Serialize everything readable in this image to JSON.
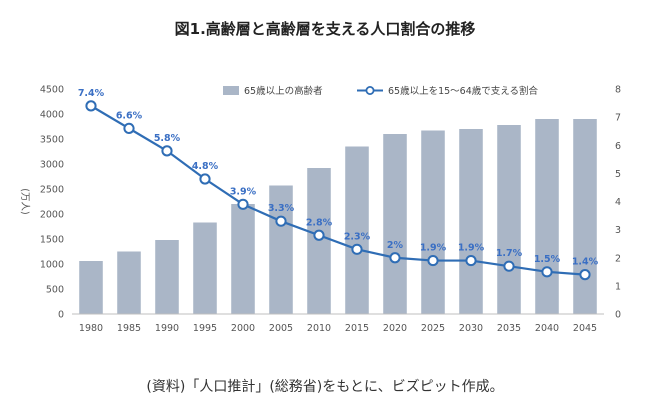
{
  "title": "図1.高齢層と高齢層を支える人口割合の推移",
  "source_note": "(資料)「人口推計」(総務省)をもとに、ビズピット作成。",
  "colors": {
    "bar": "#aab6c7",
    "line": "#2f6db5",
    "label": "#3a6fc4"
  },
  "chart_data": {
    "type": "bar",
    "categories": [
      "1980",
      "1985",
      "1990",
      "1995",
      "2000",
      "2005",
      "2010",
      "2015",
      "2020",
      "2025",
      "2030",
      "2035",
      "2040",
      "2045"
    ],
    "series": [
      {
        "name": "65歳以上の高齢者",
        "type": "bar",
        "axis": "left",
        "values": [
          1060,
          1250,
          1480,
          1830,
          2200,
          2570,
          2920,
          3350,
          3600,
          3670,
          3700,
          3780,
          3900,
          3900
        ]
      },
      {
        "name": "65歳以上を15〜64歳で支える割合",
        "type": "line",
        "axis": "right",
        "values": [
          7.4,
          6.6,
          5.8,
          4.8,
          3.9,
          3.3,
          2.8,
          2.3,
          2.0,
          1.9,
          1.9,
          1.7,
          1.5,
          1.4
        ],
        "labels": [
          "7.4%",
          "6.6%",
          "5.8%",
          "4.8%",
          "3.9%",
          "3.3%",
          "2.8%",
          "2.3%",
          "2%",
          "1.9%",
          "1.9%",
          "1.7%",
          "1.5%",
          "1.4%"
        ]
      }
    ],
    "ylabel": "(万人)",
    "ylim": [
      0,
      4500
    ],
    "yticks": [
      0,
      500,
      1000,
      1500,
      2000,
      2500,
      3000,
      3500,
      4000,
      4500
    ],
    "y2lim": [
      0,
      8
    ],
    "y2ticks": [
      0,
      1,
      2,
      3,
      4,
      5,
      6,
      7,
      8
    ],
    "legend_position": "top",
    "grid": false
  }
}
